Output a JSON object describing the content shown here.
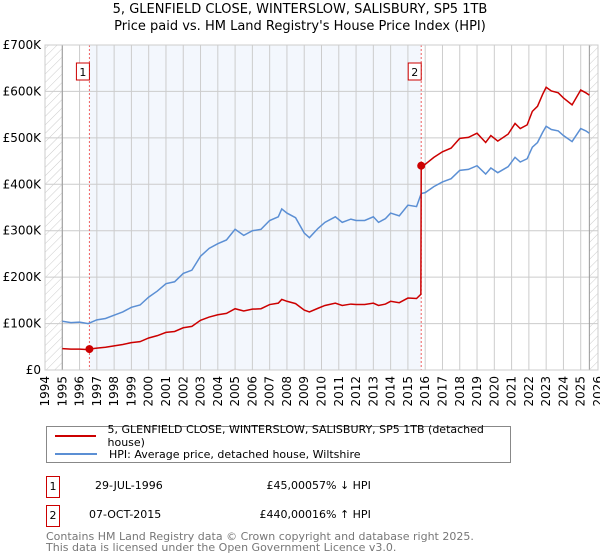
{
  "chart_data": {
    "type": "line",
    "title": "5, GLENFIELD CLOSE, WINTERSLOW, SALISBURY, SP5 1TB",
    "subtitle": "Price paid vs. HM Land Registry's House Price Index (HPI)",
    "xlim": [
      1994,
      2026
    ],
    "ylim": [
      0,
      700000
    ],
    "yticks": [
      0,
      100000,
      200000,
      300000,
      400000,
      500000,
      600000,
      700000
    ],
    "ytick_labels": [
      "£0",
      "£100K",
      "£200K",
      "£300K",
      "£400K",
      "£500K",
      "£600K",
      "£700K"
    ],
    "xticks": [
      1994,
      1995,
      1996,
      1997,
      1998,
      1999,
      2000,
      2001,
      2002,
      2003,
      2004,
      2005,
      2006,
      2007,
      2008,
      2009,
      2010,
      2011,
      2012,
      2013,
      2014,
      2015,
      2016,
      2017,
      2018,
      2019,
      2020,
      2021,
      2022,
      2023,
      2024,
      2025,
      2026
    ],
    "grid": true,
    "data_range": [
      1995,
      2025.5
    ],
    "shaded_range": [
      1996.57,
      2015.77
    ],
    "series": [
      {
        "name": "5, GLENFIELD CLOSE, WINTERSLOW, SALISBURY, SP5 1TB (detached house)",
        "color": "#cc0000",
        "x": [
          1995,
          1995.5,
          1996,
          1996.5,
          1996.57,
          1997,
          1997.5,
          1998,
          1998.5,
          1999,
          1999.5,
          2000,
          2000.5,
          2001,
          2001.5,
          2002,
          2002.5,
          2003,
          2003.5,
          2004,
          2004.5,
          2005,
          2005.5,
          2006,
          2006.5,
          2007,
          2007.5,
          2007.7,
          2008,
          2008.5,
          2009,
          2009.3,
          2009.8,
          2010.2,
          2010.8,
          2011.2,
          2011.7,
          2012,
          2012.5,
          2013,
          2013.3,
          2013.7,
          2014,
          2014.5,
          2015,
          2015.5,
          2015.75,
          2015.77,
          2016,
          2016.5,
          2017,
          2017.5,
          2018,
          2018.5,
          2019,
          2019.5,
          2019.8,
          2020.2,
          2020.8,
          2021.2,
          2021.5,
          2021.9,
          2022.2,
          2022.5,
          2022.8,
          2023,
          2023.3,
          2023.7,
          2024,
          2024.5,
          2025,
          2025.3,
          2025.5
        ],
        "values": [
          46000,
          45000,
          45000,
          44000,
          45000,
          47000,
          49000,
          52000,
          55000,
          59000,
          61000,
          69000,
          74000,
          81000,
          83000,
          91000,
          94000,
          107000,
          114000,
          119000,
          122000,
          132000,
          127000,
          131000,
          132000,
          141000,
          144000,
          152000,
          148000,
          143000,
          129000,
          125000,
          133000,
          139000,
          144000,
          139000,
          142000,
          141000,
          141000,
          144000,
          139000,
          142000,
          148000,
          145000,
          155000,
          154000,
          163000,
          440000,
          443000,
          458000,
          470000,
          478000,
          499000,
          501000,
          510000,
          490000,
          505000,
          493000,
          508000,
          531000,
          520000,
          528000,
          557000,
          568000,
          594000,
          609000,
          601000,
          597000,
          586000,
          571000,
          603000,
          597000,
          592000
        ]
      },
      {
        "name": "HPI: Average price, detached house, Wiltshire",
        "color": "#5b8fd4",
        "x": [
          1995,
          1995.5,
          1996,
          1996.5,
          1997,
          1997.5,
          1998,
          1998.5,
          1999,
          1999.5,
          2000,
          2000.5,
          2001,
          2001.5,
          2002,
          2002.5,
          2003,
          2003.5,
          2004,
          2004.5,
          2005,
          2005.5,
          2006,
          2006.5,
          2007,
          2007.5,
          2007.7,
          2008,
          2008.5,
          2009,
          2009.3,
          2009.8,
          2010.2,
          2010.8,
          2011.2,
          2011.7,
          2012,
          2012.5,
          2013,
          2013.3,
          2013.7,
          2014,
          2014.5,
          2015,
          2015.5,
          2015.77,
          2016,
          2016.5,
          2017,
          2017.5,
          2018,
          2018.5,
          2019,
          2019.5,
          2019.8,
          2020.2,
          2020.8,
          2021.2,
          2021.5,
          2021.9,
          2022.2,
          2022.5,
          2022.8,
          2023,
          2023.3,
          2023.7,
          2024,
          2024.5,
          2025,
          2025.3,
          2025.5
        ],
        "values": [
          105000,
          102000,
          103000,
          100000,
          108000,
          111000,
          118000,
          125000,
          135000,
          140000,
          157000,
          170000,
          186000,
          190000,
          208000,
          215000,
          245000,
          262000,
          272000,
          280000,
          303000,
          290000,
          300000,
          303000,
          322000,
          330000,
          347000,
          338000,
          328000,
          295000,
          285000,
          305000,
          318000,
          330000,
          318000,
          325000,
          322000,
          322000,
          330000,
          318000,
          326000,
          338000,
          332000,
          355000,
          352000,
          380000,
          382000,
          395000,
          405000,
          412000,
          430000,
          432000,
          440000,
          422000,
          435000,
          425000,
          438000,
          458000,
          448000,
          455000,
          480000,
          490000,
          512000,
          525000,
          518000,
          515000,
          505000,
          492000,
          520000,
          515000,
          510000
        ]
      }
    ],
    "sales": [
      {
        "label": "1",
        "x": 1996.57,
        "value": 45000
      },
      {
        "label": "2",
        "x": 2015.77,
        "value": 440000
      }
    ]
  },
  "legend": {
    "property": "5, GLENFIELD CLOSE, WINTERSLOW, SALISBURY, SP5 1TB (detached house)",
    "hpi": "HPI: Average price, detached house, Wiltshire"
  },
  "transactions": [
    {
      "num": "1",
      "date": "29-JUL-1996",
      "price": "£45,000",
      "hpi": "57% ↓ HPI"
    },
    {
      "num": "2",
      "date": "07-OCT-2015",
      "price": "£440,000",
      "hpi": "16% ↑ HPI"
    }
  ],
  "footer": [
    "Contains HM Land Registry data © Crown copyright and database right 2025.",
    "This data is licensed under the Open Government Licence v3.0."
  ]
}
